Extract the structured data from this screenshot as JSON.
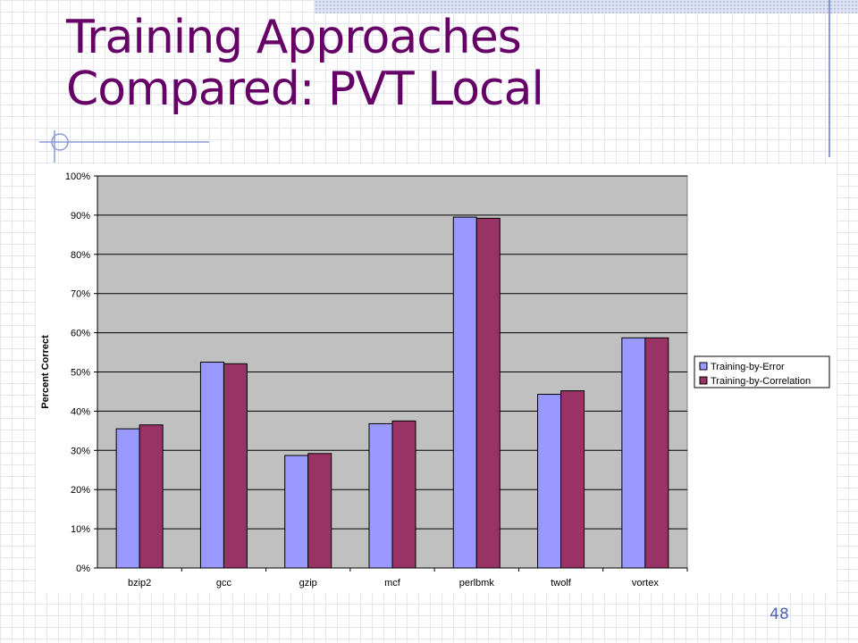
{
  "slide": {
    "title_line1": "Training Approaches",
    "title_line2": "Compared: PVT Local",
    "page_number": "48"
  },
  "colors": {
    "title": "#660066",
    "plot_bg": "#c0c0c0",
    "series_error": "#9999ff",
    "series_correlation": "#993366"
  },
  "chart_data": {
    "type": "bar",
    "title": "",
    "xlabel": "",
    "ylabel": "Percent Correct",
    "categories": [
      "bzip2",
      "gcc",
      "gzip",
      "mcf",
      "perlbmk",
      "twolf",
      "vortex"
    ],
    "series": [
      {
        "name": "Training-by-Error",
        "color": "#9999ff",
        "values": [
          35.5,
          52.5,
          28.7,
          36.8,
          89.5,
          44.3,
          58.7
        ]
      },
      {
        "name": "Training-by-Correlation",
        "color": "#993366",
        "values": [
          36.5,
          52.1,
          29.2,
          37.5,
          89.2,
          45.2,
          58.7
        ]
      }
    ],
    "yticks": [
      "0%",
      "10%",
      "20%",
      "30%",
      "40%",
      "50%",
      "60%",
      "70%",
      "80%",
      "90%",
      "100%"
    ],
    "ylim": [
      0,
      100
    ],
    "grid": true,
    "legend": "right"
  }
}
